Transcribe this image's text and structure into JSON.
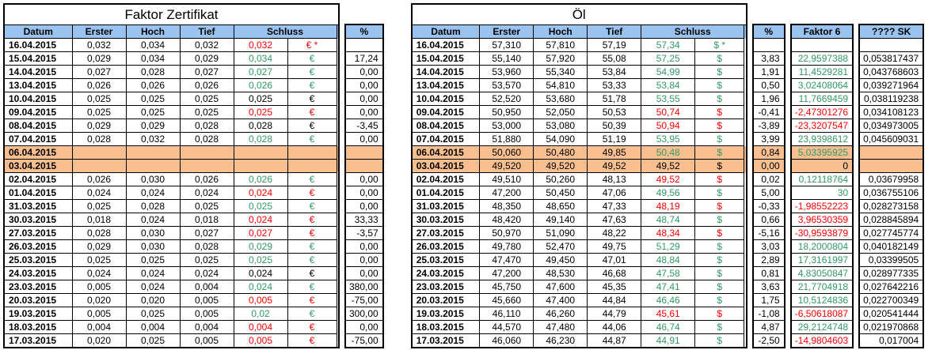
{
  "colors": {
    "header_bg": "#9AC4EF",
    "row_highlight_bg": "#FABF8F",
    "positive_text": "#339966",
    "negative_text": "#FF0000",
    "text": "#000000",
    "border": "#000000",
    "background": "#FFFFFF"
  },
  "left_table": {
    "title": "Faktor Zertifikat",
    "headers": {
      "datum": "Datum",
      "erster": "Erster",
      "hoch": "Hoch",
      "tief": "Tief",
      "schluss": "Schluss",
      "pct": "%"
    },
    "rows": [
      {
        "date": "16.04.2015",
        "open": "0,032",
        "high": "0,034",
        "low": "0,032",
        "close": "0,032",
        "cur": "€ *",
        "cc": "red",
        "pct": "",
        "bg": "plain"
      },
      {
        "date": "15.04.2015",
        "open": "0,029",
        "high": "0,034",
        "low": "0,029",
        "close": "0,034",
        "cur": "€",
        "cc": "green",
        "pct": "17,24",
        "bg": "plain"
      },
      {
        "date": "14.04.2015",
        "open": "0,027",
        "high": "0,028",
        "low": "0,027",
        "close": "0,027",
        "cur": "€",
        "cc": "green",
        "pct": "0,00",
        "bg": "plain"
      },
      {
        "date": "13.04.2015",
        "open": "0,026",
        "high": "0,026",
        "low": "0,026",
        "close": "0,026",
        "cur": "€",
        "cc": "green",
        "pct": "0,00",
        "bg": "plain"
      },
      {
        "date": "10.04.2015",
        "open": "0,025",
        "high": "0,025",
        "low": "0,025",
        "close": "0,025",
        "cur": "€",
        "cc": "black",
        "pct": "0,00",
        "bg": "plain"
      },
      {
        "date": "09.04.2015",
        "open": "0,025",
        "high": "0,025",
        "low": "0,025",
        "close": "0,025",
        "cur": "€",
        "cc": "red",
        "pct": "0,00",
        "bg": "plain"
      },
      {
        "date": "08.04.2015",
        "open": "0,029",
        "high": "0,029",
        "low": "0,028",
        "close": "0,028",
        "cur": "€",
        "cc": "black",
        "pct": "-3,45",
        "bg": "plain"
      },
      {
        "date": "07.04.2015",
        "open": "0,028",
        "high": "0,032",
        "low": "0,028",
        "close": "0,028",
        "cur": "€",
        "cc": "green",
        "pct": "0,00",
        "bg": "plain"
      },
      {
        "date": "06.04.2015",
        "open": "",
        "high": "",
        "low": "",
        "close": "",
        "cur": "",
        "cc": "black",
        "pct": "",
        "bg": "orange"
      },
      {
        "date": "03.04.2015",
        "open": "",
        "high": "",
        "low": "",
        "close": "",
        "cur": "",
        "cc": "black",
        "pct": "",
        "bg": "orange"
      },
      {
        "date": "02.04.2015",
        "open": "0,026",
        "high": "0,030",
        "low": "0,026",
        "close": "0,026",
        "cur": "€",
        "cc": "green",
        "pct": "0,00",
        "bg": "plain"
      },
      {
        "date": "01.04.2015",
        "open": "0,024",
        "high": "0,024",
        "low": "0,024",
        "close": "0,024",
        "cur": "€",
        "cc": "red",
        "pct": "0,00",
        "bg": "plain"
      },
      {
        "date": "31.03.2015",
        "open": "0,025",
        "high": "0,028",
        "low": "0,025",
        "close": "0,025",
        "cur": "€",
        "cc": "green",
        "pct": "0,00",
        "bg": "plain"
      },
      {
        "date": "30.03.2015",
        "open": "0,018",
        "high": "0,024",
        "low": "0,018",
        "close": "0,024",
        "cur": "€",
        "cc": "red",
        "pct": "33,33",
        "bg": "plain"
      },
      {
        "date": "27.03.2015",
        "open": "0,028",
        "high": "0,030",
        "low": "0,027",
        "close": "0,027",
        "cur": "€",
        "cc": "red",
        "pct": "-3,57",
        "bg": "plain"
      },
      {
        "date": "26.03.2015",
        "open": "0,029",
        "high": "0,030",
        "low": "0,028",
        "close": "0,029",
        "cur": "€",
        "cc": "green",
        "pct": "0,00",
        "bg": "plain"
      },
      {
        "date": "25.03.2015",
        "open": "0,025",
        "high": "0,025",
        "low": "0,025",
        "close": "0,025",
        "cur": "€",
        "cc": "green",
        "pct": "0,00",
        "bg": "plain"
      },
      {
        "date": "24.03.2015",
        "open": "0,024",
        "high": "0,024",
        "low": "0,024",
        "close": "0,024",
        "cur": "€",
        "cc": "black",
        "pct": "0,00",
        "bg": "plain"
      },
      {
        "date": "23.03.2015",
        "open": "0,005",
        "high": "0,024",
        "low": "0,004",
        "close": "0,024",
        "cur": "€",
        "cc": "green",
        "pct": "380,00",
        "bg": "plain"
      },
      {
        "date": "20.03.2015",
        "open": "0,020",
        "high": "0,020",
        "low": "0,005",
        "close": "0,005",
        "cur": "€",
        "cc": "red",
        "pct": "-75,00",
        "bg": "plain"
      },
      {
        "date": "19.03.2015",
        "open": "0,005",
        "high": "0,025",
        "low": "0,005",
        "close": "0,02",
        "cur": "€",
        "cc": "green",
        "pct": "300,00",
        "bg": "plain"
      },
      {
        "date": "18.03.2015",
        "open": "0,004",
        "high": "0,004",
        "low": "0,004",
        "close": "0,004",
        "cur": "€",
        "cc": "red",
        "pct": "0,00",
        "bg": "plain"
      },
      {
        "date": "17.03.2015",
        "open": "0,020",
        "high": "0,025",
        "low": "0,005",
        "close": "0,005",
        "cur": "€",
        "cc": "red",
        "pct": "-75,00",
        "bg": "plain"
      }
    ]
  },
  "right_table": {
    "title": "Öl",
    "headers": {
      "datum": "Datum",
      "erster": "Erster",
      "hoch": "Hoch",
      "tief": "Tief",
      "schluss": "Schluss",
      "pct": "%",
      "faktor6": "Faktor 6",
      "sk": "???? SK"
    },
    "rows": [
      {
        "date": "16.04.2015",
        "open": "57,310",
        "high": "57,810",
        "low": "57,19",
        "close": "57,34",
        "cur": "$ *",
        "cc": "green",
        "pct": "",
        "f6": "",
        "fc": "black",
        "sk": "",
        "bg": "plain"
      },
      {
        "date": "15.04.2015",
        "open": "55,140",
        "high": "57,920",
        "low": "55,08",
        "close": "57,25",
        "cur": "$",
        "cc": "green",
        "pct": "3,83",
        "f6": "22,9597388",
        "fc": "green",
        "sk": "0,053817437",
        "bg": "plain"
      },
      {
        "date": "14.04.2015",
        "open": "53,960",
        "high": "55,340",
        "low": "53,84",
        "close": "54,99",
        "cur": "$",
        "cc": "green",
        "pct": "1,91",
        "f6": "11,4529281",
        "fc": "green",
        "sk": "0,043768603",
        "bg": "plain"
      },
      {
        "date": "13.04.2015",
        "open": "53,570",
        "high": "54,810",
        "low": "53,33",
        "close": "53,84",
        "cur": "$",
        "cc": "green",
        "pct": "0,50",
        "f6": "3,02408064",
        "fc": "green",
        "sk": "0,039271964",
        "bg": "plain"
      },
      {
        "date": "10.04.2015",
        "open": "52,520",
        "high": "53,680",
        "low": "51,78",
        "close": "53,55",
        "cur": "$",
        "cc": "green",
        "pct": "1,96",
        "f6": "11,7669459",
        "fc": "green",
        "sk": "0,038119238",
        "bg": "plain"
      },
      {
        "date": "09.04.2015",
        "open": "50,950",
        "high": "52,050",
        "low": "50,53",
        "close": "50,74",
        "cur": "$",
        "cc": "red",
        "pct": "-0,41",
        "f6": "-2,47301276",
        "fc": "red",
        "sk": "0,034108123",
        "bg": "plain"
      },
      {
        "date": "08.04.2015",
        "open": "53,000",
        "high": "53,080",
        "low": "50,39",
        "close": "50,94",
        "cur": "$",
        "cc": "red",
        "pct": "-3,89",
        "f6": "-23,3207547",
        "fc": "red",
        "sk": "0,034973005",
        "bg": "plain"
      },
      {
        "date": "07.04.2015",
        "open": "51,880",
        "high": "54,090",
        "low": "51,19",
        "close": "53,95",
        "cur": "$",
        "cc": "green",
        "pct": "3,99",
        "f6": "23,9398612",
        "fc": "green",
        "sk": "0,045609031",
        "bg": "plain"
      },
      {
        "date": "06.04.2015",
        "open": "50,060",
        "high": "50,480",
        "low": "49,85",
        "close": "50,48",
        "cur": "$",
        "cc": "green",
        "pct": "0,84",
        "f6": "5,03395925",
        "fc": "green",
        "sk": "",
        "bg": "orange"
      },
      {
        "date": "03.04.2015",
        "open": "49,520",
        "high": "49,520",
        "low": "49,52",
        "close": "49,52",
        "cur": "$",
        "cc": "black",
        "pct": "0,00",
        "f6": "0",
        "fc": "black",
        "sk": "",
        "bg": "orange"
      },
      {
        "date": "02.04.2015",
        "open": "49,510",
        "high": "50,260",
        "low": "48,13",
        "close": "49,52",
        "cur": "$",
        "cc": "red",
        "pct": "0,02",
        "f6": "0,12118764",
        "fc": "green",
        "sk": "0,03679958",
        "bg": "plain"
      },
      {
        "date": "01.04.2015",
        "open": "47,200",
        "high": "50,450",
        "low": "47,06",
        "close": "49,56",
        "cur": "$",
        "cc": "green",
        "pct": "5,00",
        "f6": "30",
        "fc": "green",
        "sk": "0,036755106",
        "bg": "plain"
      },
      {
        "date": "31.03.2015",
        "open": "48,350",
        "high": "48,650",
        "low": "47,33",
        "close": "48,19",
        "cur": "$",
        "cc": "red",
        "pct": "-0,33",
        "f6": "-1,98552223",
        "fc": "red",
        "sk": "0,028273158",
        "bg": "plain"
      },
      {
        "date": "30.03.2015",
        "open": "48,420",
        "high": "49,140",
        "low": "47,63",
        "close": "48,74",
        "cur": "$",
        "cc": "green",
        "pct": "0,66",
        "f6": "3,96530359",
        "fc": "red",
        "sk": "0,028845894",
        "bg": "plain"
      },
      {
        "date": "27.03.2015",
        "open": "50,970",
        "high": "51,090",
        "low": "48,22",
        "close": "48,34",
        "cur": "$",
        "cc": "red",
        "pct": "-5,16",
        "f6": "-30,9593879",
        "fc": "red",
        "sk": "0,027745774",
        "bg": "plain"
      },
      {
        "date": "26.03.2015",
        "open": "49,780",
        "high": "52,470",
        "low": "49,75",
        "close": "51,29",
        "cur": "$",
        "cc": "green",
        "pct": "3,03",
        "f6": "18,2000804",
        "fc": "green",
        "sk": "0,040182149",
        "bg": "plain"
      },
      {
        "date": "25.03.2015",
        "open": "47,470",
        "high": "49,450",
        "low": "47,01",
        "close": "48,84",
        "cur": "$",
        "cc": "green",
        "pct": "2,89",
        "f6": "17,3161997",
        "fc": "green",
        "sk": "0,03399505",
        "bg": "plain"
      },
      {
        "date": "24.03.2015",
        "open": "47,200",
        "high": "48,530",
        "low": "46,68",
        "close": "47,58",
        "cur": "$",
        "cc": "green",
        "pct": "0,81",
        "f6": "4,83050847",
        "fc": "green",
        "sk": "0,028977335",
        "bg": "plain"
      },
      {
        "date": "23.03.2015",
        "open": "45,750",
        "high": "47,600",
        "low": "45,35",
        "close": "47,41",
        "cur": "$",
        "cc": "green",
        "pct": "3,63",
        "f6": "21,7704918",
        "fc": "green",
        "sk": "0,027642216",
        "bg": "plain"
      },
      {
        "date": "20.03.2015",
        "open": "45,660",
        "high": "47,400",
        "low": "44,84",
        "close": "46,46",
        "cur": "$",
        "cc": "green",
        "pct": "1,75",
        "f6": "10,5124836",
        "fc": "green",
        "sk": "0,022700349",
        "bg": "plain"
      },
      {
        "date": "19.03.2015",
        "open": "46,110",
        "high": "46,260",
        "low": "44,79",
        "close": "45,61",
        "cur": "$",
        "cc": "red",
        "pct": "-1,08",
        "f6": "-6,50618087",
        "fc": "red",
        "sk": "0,020541444",
        "bg": "plain"
      },
      {
        "date": "18.03.2015",
        "open": "44,570",
        "high": "47,480",
        "low": "44,06",
        "close": "46,74",
        "cur": "$",
        "cc": "green",
        "pct": "4,87",
        "f6": "29,2124748",
        "fc": "green",
        "sk": "0,021970868",
        "bg": "plain"
      },
      {
        "date": "17.03.2015",
        "open": "46,060",
        "high": "46,230",
        "low": "44,87",
        "close": "44,91",
        "cur": "$",
        "cc": "green",
        "pct": "-2,50",
        "f6": "-14,9804603",
        "fc": "red",
        "sk": "0,017004",
        "bg": "plain"
      }
    ]
  }
}
